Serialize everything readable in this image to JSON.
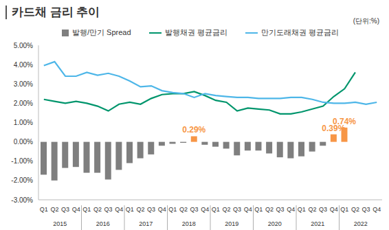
{
  "chart_data": {
    "type": "bar",
    "title": "카드채 금리 추이",
    "subtitle": "(단위:%)",
    "categories": [
      "Q1",
      "Q2",
      "Q3",
      "Q4",
      "Q1",
      "Q2",
      "Q3",
      "Q4",
      "Q1",
      "Q2",
      "Q3",
      "Q4",
      "Q1",
      "Q2",
      "Q3",
      "Q4",
      "Q1",
      "Q2",
      "Q3",
      "Q4",
      "Q1",
      "Q2",
      "Q3",
      "Q4",
      "Q1",
      "Q2",
      "Q3",
      "Q4",
      "Q1",
      "Q2",
      "Q3",
      "Q4"
    ],
    "category_groups": [
      "2015",
      "2016",
      "2017",
      "2018",
      "2019",
      "2020",
      "2021",
      "2022"
    ],
    "series": [
      {
        "name": "발행/만기 Spread",
        "type": "bar",
        "colors": [
          "#7f7f7f",
          "#7f7f7f",
          "#7f7f7f",
          "#7f7f7f",
          "#7f7f7f",
          "#7f7f7f",
          "#7f7f7f",
          "#7f7f7f",
          "#7f7f7f",
          "#7f7f7f",
          "#7f7f7f",
          "#7f7f7f",
          "#7f7f7f",
          "#7f7f7f",
          "#f79646",
          "#7f7f7f",
          "#7f7f7f",
          "#7f7f7f",
          "#7f7f7f",
          "#7f7f7f",
          "#7f7f7f",
          "#7f7f7f",
          "#7f7f7f",
          "#7f7f7f",
          "#7f7f7f",
          "#7f7f7f",
          "#7f7f7f",
          "#f79646",
          "#f79646",
          "#7f7f7f",
          "#7f7f7f",
          "#7f7f7f"
        ],
        "color": "#7f7f7f",
        "values": [
          -1.7,
          -2.0,
          -1.35,
          -1.3,
          -1.6,
          -1.6,
          -1.95,
          -1.45,
          -1.1,
          -0.85,
          -0.65,
          -0.2,
          -0.1,
          -0.05,
          0.29,
          -0.15,
          -0.25,
          -0.35,
          -0.7,
          -0.45,
          -0.45,
          -0.6,
          -0.8,
          -0.85,
          -0.75,
          -0.5,
          -0.2,
          0.39,
          0.74,
          null,
          null,
          null
        ],
        "value_labels": [
          null,
          null,
          null,
          null,
          null,
          null,
          null,
          null,
          null,
          null,
          null,
          null,
          null,
          null,
          "0.29%",
          null,
          null,
          null,
          null,
          null,
          null,
          null,
          null,
          null,
          null,
          null,
          null,
          "0.39%",
          "0.74%",
          null,
          null,
          null
        ]
      },
      {
        "name": "발행채권 평균금리",
        "type": "line",
        "color": "#00956c",
        "values": [
          2.2,
          2.1,
          2.0,
          2.1,
          2.0,
          1.85,
          1.6,
          1.95,
          2.05,
          1.95,
          2.25,
          2.45,
          2.5,
          2.5,
          2.6,
          2.4,
          2.15,
          2.05,
          1.6,
          1.75,
          1.7,
          1.65,
          1.45,
          1.45,
          1.55,
          1.7,
          1.85,
          2.35,
          2.75,
          3.6,
          null,
          null
        ]
      },
      {
        "name": "만기도래채권 평균금리",
        "type": "line",
        "color": "#4db6e8",
        "values": [
          3.95,
          4.15,
          3.4,
          3.4,
          3.6,
          3.45,
          3.55,
          3.4,
          3.15,
          2.85,
          2.9,
          2.65,
          2.55,
          2.5,
          2.3,
          2.5,
          2.4,
          2.35,
          2.3,
          2.3,
          2.25,
          2.25,
          2.25,
          2.3,
          2.3,
          2.2,
          2.05,
          2.0,
          2.0,
          2.05,
          1.95,
          2.05
        ]
      }
    ],
    "ylim": [
      -3,
      5
    ],
    "yticks": [
      {
        "value": -3,
        "label": "-3.00%"
      },
      {
        "value": -2,
        "label": "-2.00%"
      },
      {
        "value": -1,
        "label": "-1.00%"
      },
      {
        "value": 0,
        "label": "0.00%"
      },
      {
        "value": 1,
        "label": "1.00%"
      },
      {
        "value": 2,
        "label": "2.00%"
      },
      {
        "value": 3,
        "label": "3.00%"
      },
      {
        "value": 4,
        "label": "4.00%"
      },
      {
        "value": 5,
        "label": "5.00%"
      }
    ],
    "grid": false,
    "legend": "top",
    "data_labels": true
  }
}
